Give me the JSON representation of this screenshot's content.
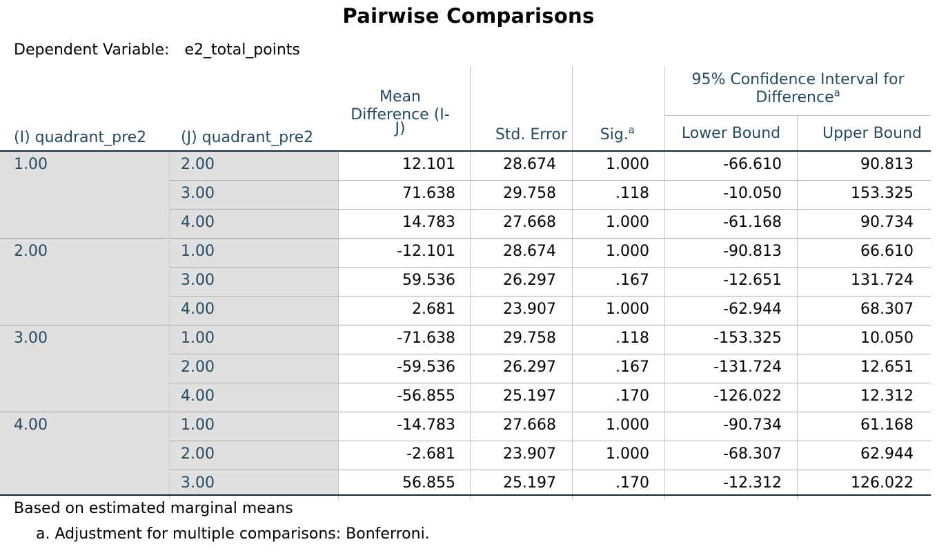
{
  "title": "Pairwise Comparisons",
  "dependent_variable": {
    "label": "Dependent Variable:",
    "value": "e2_total_points"
  },
  "headers": {
    "i": "(I) quadrant_pre2",
    "j": "(J) quadrant_pre2",
    "mean_diff_line1": "Mean",
    "mean_diff_line2": "Difference (I-",
    "mean_diff_line3": "J)",
    "std_error": "Std. Error",
    "sig": "Sig.",
    "sig_sup": "a",
    "ci_line1": "95% Confidence Interval for",
    "ci_line2": "Difference",
    "ci_sup": "a",
    "lower": "Lower Bound",
    "upper": "Upper Bound"
  },
  "groups": [
    {
      "i": "1.00",
      "rows": [
        {
          "j": "2.00",
          "mean_diff": "12.101",
          "std_error": "28.674",
          "sig": "1.000",
          "lower": "-66.610",
          "upper": "90.813"
        },
        {
          "j": "3.00",
          "mean_diff": "71.638",
          "std_error": "29.758",
          "sig": ".118",
          "lower": "-10.050",
          "upper": "153.325"
        },
        {
          "j": "4.00",
          "mean_diff": "14.783",
          "std_error": "27.668",
          "sig": "1.000",
          "lower": "-61.168",
          "upper": "90.734"
        }
      ]
    },
    {
      "i": "2.00",
      "rows": [
        {
          "j": "1.00",
          "mean_diff": "-12.101",
          "std_error": "28.674",
          "sig": "1.000",
          "lower": "-90.813",
          "upper": "66.610"
        },
        {
          "j": "3.00",
          "mean_diff": "59.536",
          "std_error": "26.297",
          "sig": ".167",
          "lower": "-12.651",
          "upper": "131.724"
        },
        {
          "j": "4.00",
          "mean_diff": "2.681",
          "std_error": "23.907",
          "sig": "1.000",
          "lower": "-62.944",
          "upper": "68.307"
        }
      ]
    },
    {
      "i": "3.00",
      "rows": [
        {
          "j": "1.00",
          "mean_diff": "-71.638",
          "std_error": "29.758",
          "sig": ".118",
          "lower": "-153.325",
          "upper": "10.050"
        },
        {
          "j": "2.00",
          "mean_diff": "-59.536",
          "std_error": "26.297",
          "sig": ".167",
          "lower": "-131.724",
          "upper": "12.651"
        },
        {
          "j": "4.00",
          "mean_diff": "-56.855",
          "std_error": "25.197",
          "sig": ".170",
          "lower": "-126.022",
          "upper": "12.312"
        }
      ]
    },
    {
      "i": "4.00",
      "rows": [
        {
          "j": "1.00",
          "mean_diff": "-14.783",
          "std_error": "27.668",
          "sig": "1.000",
          "lower": "-90.734",
          "upper": "61.168"
        },
        {
          "j": "2.00",
          "mean_diff": "-2.681",
          "std_error": "23.907",
          "sig": "1.000",
          "lower": "-68.307",
          "upper": "62.944"
        },
        {
          "j": "3.00",
          "mean_diff": "56.855",
          "std_error": "25.197",
          "sig": ".170",
          "lower": "-12.312",
          "upper": "126.022"
        }
      ]
    }
  ],
  "footnotes": {
    "basis": "Based on estimated marginal means",
    "a": "a. Adjustment for multiple comparisons: Bonferroni."
  }
}
